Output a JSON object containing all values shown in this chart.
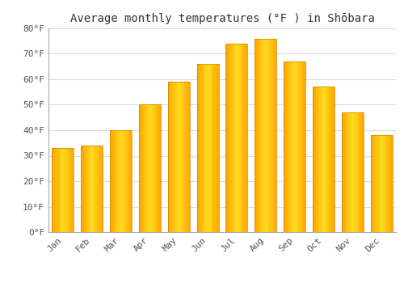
{
  "title": "Average monthly temperatures (°F ) in Shōbara",
  "months": [
    "Jan",
    "Feb",
    "Mar",
    "Apr",
    "May",
    "Jun",
    "Jul",
    "Aug",
    "Sep",
    "Oct",
    "Nov",
    "Dec"
  ],
  "values": [
    33,
    34,
    40,
    50,
    59,
    66,
    74,
    76,
    67,
    57,
    47,
    38
  ],
  "bar_color_bottom": "#FFA500",
  "bar_color_top": "#FFD060",
  "background_color": "#FFFFFF",
  "grid_color": "#DDDDDD",
  "ylim": [
    0,
    80
  ],
  "yticks": [
    0,
    10,
    20,
    30,
    40,
    50,
    60,
    70,
    80
  ],
  "title_fontsize": 10,
  "tick_fontsize": 8,
  "title_color": "#333333",
  "tick_color": "#555555"
}
